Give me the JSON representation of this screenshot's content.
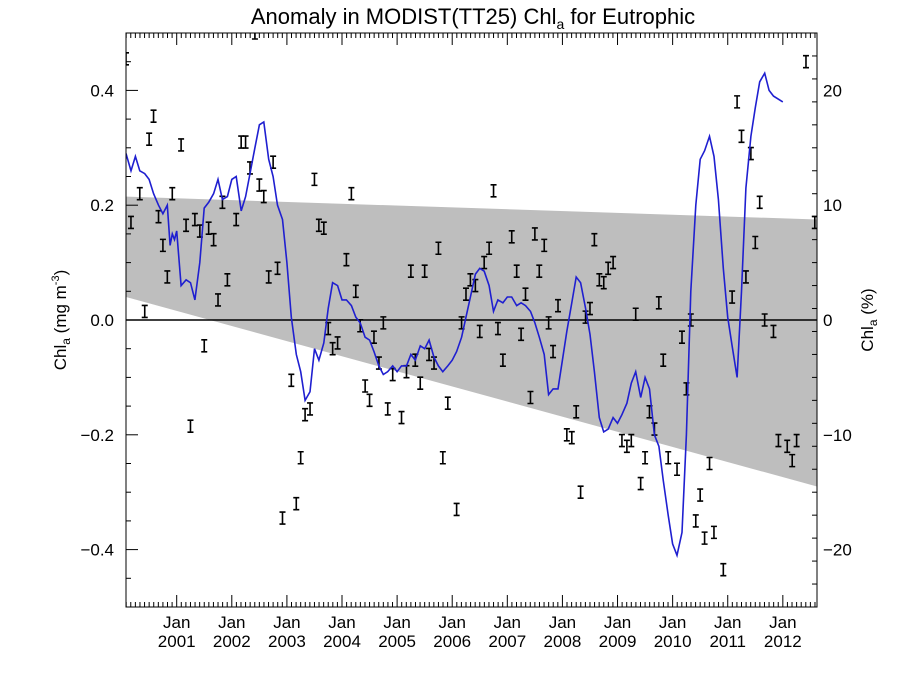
{
  "chart_data": {
    "type": "line",
    "title": {
      "text": "Anomaly in MODIST(TT25) Chl",
      "sub": "a",
      "after": " for Eutrophic"
    },
    "ylabel_left": {
      "pre": "Chl",
      "sub": "a",
      "mid": " (mg m",
      "sup": "-3",
      "post": ")"
    },
    "ylabel_right": {
      "pre": "Chl",
      "sub": "a",
      "post": " (%)"
    },
    "xlim": [
      2000.08,
      2012.62
    ],
    "ylim": [
      -0.5,
      0.5
    ],
    "ylim_right": [
      -25,
      25
    ],
    "x_ticks": [
      {
        "x": 2001.0,
        "top": "Jan",
        "bottom": "2001"
      },
      {
        "x": 2002.0,
        "top": "Jan",
        "bottom": "2002"
      },
      {
        "x": 2003.0,
        "top": "Jan",
        "bottom": "2003"
      },
      {
        "x": 2004.0,
        "top": "Jan",
        "bottom": "2004"
      },
      {
        "x": 2005.0,
        "top": "Jan",
        "bottom": "2005"
      },
      {
        "x": 2006.0,
        "top": "Jan",
        "bottom": "2006"
      },
      {
        "x": 2007.0,
        "top": "Jan",
        "bottom": "2007"
      },
      {
        "x": 2008.0,
        "top": "Jan",
        "bottom": "2008"
      },
      {
        "x": 2009.0,
        "top": "Jan",
        "bottom": "2009"
      },
      {
        "x": 2010.0,
        "top": "Jan",
        "bottom": "2010"
      },
      {
        "x": 2011.0,
        "top": "Jan",
        "bottom": "2011"
      },
      {
        "x": 2012.0,
        "top": "Jan",
        "bottom": "2012"
      }
    ],
    "y_ticks_left": [
      {
        "v": 0.4,
        "label": "0.4"
      },
      {
        "v": 0.2,
        "label": "0.2"
      },
      {
        "v": 0.0,
        "label": "0.0"
      },
      {
        "v": -0.2,
        "label": "−0.2"
      },
      {
        "v": -0.4,
        "label": "−0.4"
      }
    ],
    "y_ticks_right": [
      {
        "v": 20,
        "label": "20"
      },
      {
        "v": 10,
        "label": "10"
      },
      {
        "v": 0,
        "label": "0"
      },
      {
        "v": -10,
        "label": "−10"
      },
      {
        "v": -20,
        "label": "−20"
      }
    ],
    "band": {
      "upper": [
        [
          2000.08,
          0.215
        ],
        [
          2012.62,
          0.175
        ]
      ],
      "lower": [
        [
          2000.08,
          0.04
        ],
        [
          2012.62,
          -0.29
        ]
      ]
    },
    "zero_line": 0,
    "points": [
      [
        2000.08,
        0.455
      ],
      [
        2000.17,
        0.17
      ],
      [
        2000.33,
        0.22
      ],
      [
        2000.42,
        0.015
      ],
      [
        2000.5,
        0.315
      ],
      [
        2000.58,
        0.355
      ],
      [
        2000.67,
        0.18
      ],
      [
        2000.75,
        0.13
      ],
      [
        2000.83,
        0.075
      ],
      [
        2000.92,
        0.22
      ],
      [
        2001.08,
        0.305
      ],
      [
        2001.17,
        0.165
      ],
      [
        2001.25,
        -0.185
      ],
      [
        2001.33,
        0.175
      ],
      [
        2001.42,
        0.155
      ],
      [
        2001.5,
        -0.045
      ],
      [
        2001.58,
        0.16
      ],
      [
        2001.67,
        0.14
      ],
      [
        2001.75,
        0.035
      ],
      [
        2001.83,
        0.205
      ],
      [
        2001.92,
        0.07
      ],
      [
        2002.08,
        0.175
      ],
      [
        2002.17,
        0.31
      ],
      [
        2002.25,
        0.31
      ],
      [
        2002.33,
        0.265
      ],
      [
        2002.42,
        0.5
      ],
      [
        2002.5,
        0.235
      ],
      [
        2002.58,
        0.215
      ],
      [
        2002.67,
        0.075
      ],
      [
        2002.75,
        0.275
      ],
      [
        2002.83,
        0.09
      ],
      [
        2002.92,
        -0.345
      ],
      [
        2003.08,
        -0.105
      ],
      [
        2003.17,
        -0.32
      ],
      [
        2003.25,
        -0.24
      ],
      [
        2003.33,
        -0.165
      ],
      [
        2003.42,
        -0.155
      ],
      [
        2003.5,
        0.245
      ],
      [
        2003.58,
        0.165
      ],
      [
        2003.67,
        0.16
      ],
      [
        2003.75,
        -0.015
      ],
      [
        2003.83,
        -0.05
      ],
      [
        2003.92,
        -0.04
      ],
      [
        2004.08,
        0.105
      ],
      [
        2004.17,
        0.22
      ],
      [
        2004.25,
        0.05
      ],
      [
        2004.33,
        -0.01
      ],
      [
        2004.42,
        -0.115
      ],
      [
        2004.5,
        -0.14
      ],
      [
        2004.58,
        -0.03
      ],
      [
        2004.67,
        -0.075
      ],
      [
        2004.75,
        -0.005
      ],
      [
        2004.83,
        -0.155
      ],
      [
        2004.92,
        -0.095
      ],
      [
        2005.08,
        -0.17
      ],
      [
        2005.17,
        -0.09
      ],
      [
        2005.25,
        0.085
      ],
      [
        2005.33,
        -0.07
      ],
      [
        2005.42,
        -0.11
      ],
      [
        2005.5,
        0.085
      ],
      [
        2005.58,
        -0.06
      ],
      [
        2005.67,
        -0.075
      ],
      [
        2005.75,
        0.125
      ],
      [
        2005.83,
        -0.24
      ],
      [
        2005.92,
        -0.145
      ],
      [
        2006.08,
        -0.33
      ],
      [
        2006.17,
        -0.005
      ],
      [
        2006.25,
        0.045
      ],
      [
        2006.33,
        0.07
      ],
      [
        2006.42,
        0.06
      ],
      [
        2006.5,
        -0.02
      ],
      [
        2006.58,
        0.1
      ],
      [
        2006.67,
        0.125
      ],
      [
        2006.75,
        0.225
      ],
      [
        2006.83,
        -0.015
      ],
      [
        2006.92,
        -0.07
      ],
      [
        2007.08,
        0.145
      ],
      [
        2007.17,
        0.085
      ],
      [
        2007.25,
        -0.025
      ],
      [
        2007.33,
        0.045
      ],
      [
        2007.42,
        -0.135
      ],
      [
        2007.5,
        0.15
      ],
      [
        2007.58,
        0.085
      ],
      [
        2007.67,
        0.13
      ],
      [
        2007.75,
        -0.005
      ],
      [
        2007.83,
        -0.055
      ],
      [
        2007.92,
        0.025
      ],
      [
        2008.08,
        -0.2
      ],
      [
        2008.17,
        -0.205
      ],
      [
        2008.25,
        -0.16
      ],
      [
        2008.33,
        -0.3
      ],
      [
        2008.42,
        0.005
      ],
      [
        2008.5,
        0.02
      ],
      [
        2008.58,
        0.14
      ],
      [
        2008.67,
        0.07
      ],
      [
        2008.75,
        0.065
      ],
      [
        2008.83,
        0.09
      ],
      [
        2008.92,
        0.1
      ],
      [
        2009.08,
        -0.21
      ],
      [
        2009.17,
        -0.22
      ],
      [
        2009.25,
        -0.21
      ],
      [
        2009.33,
        0.01
      ],
      [
        2009.42,
        -0.285
      ],
      [
        2009.5,
        -0.24
      ],
      [
        2009.58,
        -0.16
      ],
      [
        2009.67,
        -0.19
      ],
      [
        2009.75,
        0.03
      ],
      [
        2009.83,
        -0.07
      ],
      [
        2009.92,
        -0.24
      ],
      [
        2010.08,
        -0.26
      ],
      [
        2010.17,
        -0.03
      ],
      [
        2010.25,
        -0.12
      ],
      [
        2010.33,
        0.0
      ],
      [
        2010.42,
        -0.35
      ],
      [
        2010.5,
        -0.305
      ],
      [
        2010.58,
        -0.38
      ],
      [
        2010.67,
        -0.25
      ],
      [
        2010.75,
        -0.37
      ],
      [
        2010.92,
        -0.435
      ],
      [
        2011.08,
        0.04
      ],
      [
        2011.17,
        0.38
      ],
      [
        2011.25,
        0.32
      ],
      [
        2011.33,
        0.075
      ],
      [
        2011.42,
        0.29
      ],
      [
        2011.5,
        0.135
      ],
      [
        2011.58,
        0.205
      ],
      [
        2011.67,
        0.0
      ],
      [
        2011.83,
        -0.02
      ],
      [
        2011.92,
        -0.21
      ],
      [
        2012.08,
        -0.22
      ],
      [
        2012.17,
        -0.245
      ],
      [
        2012.25,
        -0.21
      ],
      [
        2012.42,
        0.45
      ],
      [
        2012.58,
        0.17
      ]
    ],
    "line": [
      [
        2000.08,
        0.29
      ],
      [
        2000.17,
        0.26
      ],
      [
        2000.25,
        0.285
      ],
      [
        2000.33,
        0.26
      ],
      [
        2000.42,
        0.255
      ],
      [
        2000.5,
        0.245
      ],
      [
        2000.58,
        0.22
      ],
      [
        2000.67,
        0.2
      ],
      [
        2000.75,
        0.185
      ],
      [
        2000.83,
        0.2
      ],
      [
        2000.88,
        0.13
      ],
      [
        2000.92,
        0.15
      ],
      [
        2000.96,
        0.14
      ],
      [
        2001.0,
        0.155
      ],
      [
        2001.08,
        0.06
      ],
      [
        2001.17,
        0.07
      ],
      [
        2001.25,
        0.065
      ],
      [
        2001.33,
        0.035
      ],
      [
        2001.42,
        0.1
      ],
      [
        2001.5,
        0.195
      ],
      [
        2001.58,
        0.205
      ],
      [
        2001.67,
        0.22
      ],
      [
        2001.75,
        0.245
      ],
      [
        2001.83,
        0.21
      ],
      [
        2001.92,
        0.215
      ],
      [
        2002.0,
        0.245
      ],
      [
        2002.08,
        0.25
      ],
      [
        2002.17,
        0.19
      ],
      [
        2002.25,
        0.215
      ],
      [
        2002.33,
        0.255
      ],
      [
        2002.42,
        0.3
      ],
      [
        2002.5,
        0.34
      ],
      [
        2002.58,
        0.345
      ],
      [
        2002.67,
        0.28
      ],
      [
        2002.75,
        0.25
      ],
      [
        2002.83,
        0.2
      ],
      [
        2002.92,
        0.175
      ],
      [
        2003.0,
        0.1
      ],
      [
        2003.08,
        0.005
      ],
      [
        2003.17,
        -0.06
      ],
      [
        2003.25,
        -0.09
      ],
      [
        2003.33,
        -0.14
      ],
      [
        2003.42,
        -0.125
      ],
      [
        2003.5,
        -0.05
      ],
      [
        2003.58,
        -0.07
      ],
      [
        2003.67,
        -0.04
      ],
      [
        2003.75,
        0.02
      ],
      [
        2003.83,
        0.065
      ],
      [
        2003.92,
        0.06
      ],
      [
        2004.0,
        0.035
      ],
      [
        2004.08,
        0.035
      ],
      [
        2004.17,
        0.025
      ],
      [
        2004.25,
        0.005
      ],
      [
        2004.33,
        -0.005
      ],
      [
        2004.42,
        -0.03
      ],
      [
        2004.5,
        -0.035
      ],
      [
        2004.58,
        -0.055
      ],
      [
        2004.67,
        -0.08
      ],
      [
        2004.75,
        -0.095
      ],
      [
        2004.83,
        -0.09
      ],
      [
        2004.92,
        -0.08
      ],
      [
        2005.0,
        -0.09
      ],
      [
        2005.08,
        -0.08
      ],
      [
        2005.17,
        -0.08
      ],
      [
        2005.25,
        -0.06
      ],
      [
        2005.33,
        -0.07
      ],
      [
        2005.42,
        -0.045
      ],
      [
        2005.5,
        -0.05
      ],
      [
        2005.58,
        -0.035
      ],
      [
        2005.67,
        -0.065
      ],
      [
        2005.75,
        -0.08
      ],
      [
        2005.83,
        -0.09
      ],
      [
        2005.92,
        -0.08
      ],
      [
        2006.0,
        -0.07
      ],
      [
        2006.08,
        -0.055
      ],
      [
        2006.17,
        -0.03
      ],
      [
        2006.25,
        0.005
      ],
      [
        2006.33,
        0.04
      ],
      [
        2006.42,
        0.08
      ],
      [
        2006.5,
        0.09
      ],
      [
        2006.58,
        0.085
      ],
      [
        2006.67,
        0.06
      ],
      [
        2006.75,
        0.015
      ],
      [
        2006.83,
        0.035
      ],
      [
        2006.92,
        0.03
      ],
      [
        2007.0,
        0.04
      ],
      [
        2007.08,
        0.04
      ],
      [
        2007.17,
        0.025
      ],
      [
        2007.25,
        0.03
      ],
      [
        2007.33,
        0.025
      ],
      [
        2007.42,
        0.015
      ],
      [
        2007.5,
        -0.005
      ],
      [
        2007.58,
        -0.03
      ],
      [
        2007.67,
        -0.06
      ],
      [
        2007.75,
        -0.13
      ],
      [
        2007.83,
        -0.12
      ],
      [
        2007.92,
        -0.12
      ],
      [
        2008.0,
        -0.07
      ],
      [
        2008.08,
        -0.02
      ],
      [
        2008.17,
        0.03
      ],
      [
        2008.25,
        0.075
      ],
      [
        2008.33,
        0.065
      ],
      [
        2008.42,
        0.02
      ],
      [
        2008.5,
        -0.025
      ],
      [
        2008.58,
        -0.09
      ],
      [
        2008.67,
        -0.17
      ],
      [
        2008.75,
        -0.195
      ],
      [
        2008.83,
        -0.19
      ],
      [
        2008.92,
        -0.17
      ],
      [
        2009.0,
        -0.18
      ],
      [
        2009.08,
        -0.165
      ],
      [
        2009.17,
        -0.145
      ],
      [
        2009.25,
        -0.11
      ],
      [
        2009.33,
        -0.09
      ],
      [
        2009.42,
        -0.135
      ],
      [
        2009.5,
        -0.1
      ],
      [
        2009.58,
        -0.12
      ],
      [
        2009.67,
        -0.2
      ],
      [
        2009.75,
        -0.22
      ],
      [
        2009.83,
        -0.28
      ],
      [
        2009.92,
        -0.34
      ],
      [
        2010.0,
        -0.39
      ],
      [
        2010.08,
        -0.41
      ],
      [
        2010.17,
        -0.37
      ],
      [
        2010.25,
        -0.2
      ],
      [
        2010.33,
        0.05
      ],
      [
        2010.42,
        0.2
      ],
      [
        2010.5,
        0.28
      ],
      [
        2010.58,
        0.295
      ],
      [
        2010.67,
        0.32
      ],
      [
        2010.75,
        0.285
      ],
      [
        2010.83,
        0.21
      ],
      [
        2010.92,
        0.09
      ],
      [
        2011.0,
        0.005
      ],
      [
        2011.08,
        -0.045
      ],
      [
        2011.17,
        -0.1
      ],
      [
        2011.25,
        0.05
      ],
      [
        2011.33,
        0.23
      ],
      [
        2011.42,
        0.32
      ],
      [
        2011.5,
        0.37
      ],
      [
        2011.58,
        0.415
      ],
      [
        2011.67,
        0.43
      ],
      [
        2011.75,
        0.4
      ],
      [
        2011.83,
        0.39
      ],
      [
        2012.0,
        0.38
      ]
    ]
  }
}
